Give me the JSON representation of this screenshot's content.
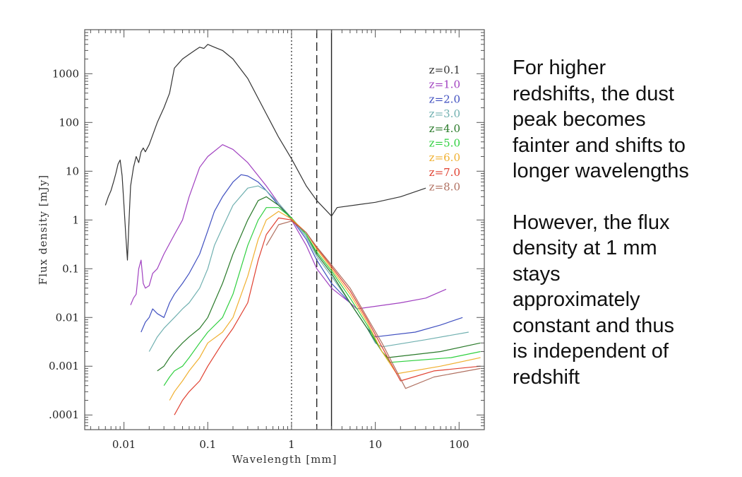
{
  "chart_data": {
    "type": "line",
    "xlabel": "Wavelength [mm]",
    "ylabel": "Flux density [mJy]",
    "xscale": "log",
    "yscale": "log",
    "xlim": [
      0.0034,
      200
    ],
    "ylim": [
      5e-05,
      8000
    ],
    "grid": false,
    "legend_position": "top-right",
    "x_tick_labels": [
      "0.01",
      "0.1",
      "1",
      "10",
      "100"
    ],
    "y_tick_labels": [
      ".0001",
      "0.001",
      "0.01",
      "0.1",
      "1",
      "10",
      "100",
      "1000"
    ],
    "x_tick_values": [
      0.01,
      0.1,
      1,
      10,
      100
    ],
    "y_tick_values": [
      0.0001,
      0.001,
      0.01,
      0.1,
      1,
      10,
      100,
      1000
    ],
    "vertical_lines": [
      {
        "x": 1,
        "style": "dotted"
      },
      {
        "x": 2,
        "style": "dashed"
      },
      {
        "x": 3,
        "style": "solid"
      }
    ],
    "series": [
      {
        "name": "z=0.1",
        "color": "#333333",
        "points": [
          [
            0.006,
            2
          ],
          [
            0.0065,
            3
          ],
          [
            0.007,
            4
          ],
          [
            0.0075,
            6
          ],
          [
            0.008,
            9
          ],
          [
            0.0085,
            14
          ],
          [
            0.009,
            17
          ],
          [
            0.0095,
            8
          ],
          [
            0.01,
            2
          ],
          [
            0.0105,
            0.5
          ],
          [
            0.011,
            0.15
          ],
          [
            0.0115,
            1
          ],
          [
            0.012,
            5
          ],
          [
            0.013,
            12
          ],
          [
            0.014,
            20
          ],
          [
            0.015,
            15
          ],
          [
            0.016,
            25
          ],
          [
            0.017,
            30
          ],
          [
            0.018,
            25
          ],
          [
            0.02,
            35
          ],
          [
            0.025,
            100
          ],
          [
            0.03,
            200
          ],
          [
            0.035,
            400
          ],
          [
            0.04,
            1300
          ],
          [
            0.05,
            2000
          ],
          [
            0.06,
            2500
          ],
          [
            0.07,
            3000
          ],
          [
            0.08,
            3500
          ],
          [
            0.09,
            3300
          ],
          [
            0.1,
            4000
          ],
          [
            0.12,
            3500
          ],
          [
            0.15,
            3000
          ],
          [
            0.2,
            2000
          ],
          [
            0.3,
            800
          ],
          [
            0.5,
            150
          ],
          [
            0.7,
            50
          ],
          [
            1,
            18
          ],
          [
            1.5,
            5
          ],
          [
            2,
            2.5
          ],
          [
            3,
            1.2
          ],
          [
            3.5,
            1.8
          ],
          [
            10,
            2.3
          ],
          [
            20,
            3
          ],
          [
            40,
            4.5
          ]
        ]
      },
      {
        "name": "z=1.0",
        "color": "#a040c0",
        "points": [
          [
            0.012,
            0.018
          ],
          [
            0.013,
            0.025
          ],
          [
            0.014,
            0.03
          ],
          [
            0.015,
            0.1
          ],
          [
            0.016,
            0.15
          ],
          [
            0.017,
            0.05
          ],
          [
            0.018,
            0.04
          ],
          [
            0.02,
            0.045
          ],
          [
            0.022,
            0.08
          ],
          [
            0.025,
            0.1
          ],
          [
            0.03,
            0.2
          ],
          [
            0.04,
            0.5
          ],
          [
            0.05,
            1
          ],
          [
            0.06,
            3
          ],
          [
            0.08,
            12
          ],
          [
            0.1,
            20
          ],
          [
            0.15,
            35
          ],
          [
            0.2,
            28
          ],
          [
            0.3,
            15
          ],
          [
            0.5,
            5
          ],
          [
            0.7,
            2.2
          ],
          [
            1,
            1
          ],
          [
            1.5,
            0.3
          ],
          [
            2,
            0.1
          ],
          [
            3,
            0.04
          ],
          [
            5,
            0.02
          ],
          [
            6,
            0.015
          ],
          [
            20,
            0.02
          ],
          [
            40,
            0.025
          ],
          [
            70,
            0.038
          ]
        ]
      },
      {
        "name": "z=2.0",
        "color": "#4050c0",
        "points": [
          [
            0.016,
            0.005
          ],
          [
            0.018,
            0.008
          ],
          [
            0.02,
            0.01
          ],
          [
            0.022,
            0.015
          ],
          [
            0.025,
            0.012
          ],
          [
            0.03,
            0.01
          ],
          [
            0.035,
            0.02
          ],
          [
            0.04,
            0.03
          ],
          [
            0.05,
            0.05
          ],
          [
            0.06,
            0.08
          ],
          [
            0.08,
            0.2
          ],
          [
            0.1,
            0.6
          ],
          [
            0.12,
            1.5
          ],
          [
            0.15,
            3
          ],
          [
            0.2,
            6
          ],
          [
            0.25,
            8.5
          ],
          [
            0.3,
            8
          ],
          [
            0.4,
            6
          ],
          [
            0.5,
            4
          ],
          [
            0.7,
            2
          ],
          [
            1,
            1.05
          ],
          [
            1.5,
            0.4
          ],
          [
            2,
            0.15
          ],
          [
            3,
            0.05
          ],
          [
            5,
            0.02
          ],
          [
            8,
            0.006
          ],
          [
            10,
            0.004
          ],
          [
            30,
            0.005
          ],
          [
            60,
            0.007
          ],
          [
            110,
            0.01
          ]
        ]
      },
      {
        "name": "z=3.0",
        "color": "#70b0b0",
        "points": [
          [
            0.02,
            0.002
          ],
          [
            0.025,
            0.004
          ],
          [
            0.03,
            0.006
          ],
          [
            0.04,
            0.01
          ],
          [
            0.05,
            0.015
          ],
          [
            0.06,
            0.02
          ],
          [
            0.08,
            0.04
          ],
          [
            0.1,
            0.1
          ],
          [
            0.12,
            0.3
          ],
          [
            0.15,
            0.7
          ],
          [
            0.2,
            2
          ],
          [
            0.3,
            4.5
          ],
          [
            0.4,
            5
          ],
          [
            0.5,
            4
          ],
          [
            0.7,
            2.2
          ],
          [
            1,
            1.1
          ],
          [
            1.5,
            0.45
          ],
          [
            2,
            0.18
          ],
          [
            3,
            0.07
          ],
          [
            5,
            0.02
          ],
          [
            8,
            0.006
          ],
          [
            10,
            0.003
          ],
          [
            12,
            0.0025
          ],
          [
            40,
            0.0035
          ],
          [
            130,
            0.005
          ]
        ]
      },
      {
        "name": "z=4.0",
        "color": "#2a7a2a",
        "points": [
          [
            0.025,
            0.0008
          ],
          [
            0.03,
            0.001
          ],
          [
            0.035,
            0.0015
          ],
          [
            0.04,
            0.002
          ],
          [
            0.05,
            0.003
          ],
          [
            0.06,
            0.004
          ],
          [
            0.08,
            0.006
          ],
          [
            0.1,
            0.01
          ],
          [
            0.15,
            0.05
          ],
          [
            0.2,
            0.2
          ],
          [
            0.3,
            1
          ],
          [
            0.4,
            2.5
          ],
          [
            0.5,
            3
          ],
          [
            0.7,
            2
          ],
          [
            1,
            1.1
          ],
          [
            1.5,
            0.5
          ],
          [
            2,
            0.2
          ],
          [
            3,
            0.08
          ],
          [
            5,
            0.02
          ],
          [
            8,
            0.006
          ],
          [
            12,
            0.002
          ],
          [
            14,
            0.0015
          ],
          [
            60,
            0.002
          ],
          [
            180,
            0.003
          ]
        ]
      },
      {
        "name": "z=5.0",
        "color": "#30d040",
        "points": [
          [
            0.03,
            0.0004
          ],
          [
            0.035,
            0.0006
          ],
          [
            0.04,
            0.0008
          ],
          [
            0.05,
            0.001
          ],
          [
            0.06,
            0.0015
          ],
          [
            0.08,
            0.003
          ],
          [
            0.1,
            0.005
          ],
          [
            0.15,
            0.01
          ],
          [
            0.2,
            0.03
          ],
          [
            0.3,
            0.3
          ],
          [
            0.4,
            1
          ],
          [
            0.5,
            1.8
          ],
          [
            0.7,
            1.8
          ],
          [
            1,
            1.1
          ],
          [
            1.5,
            0.5
          ],
          [
            2,
            0.22
          ],
          [
            3,
            0.09
          ],
          [
            5,
            0.025
          ],
          [
            8,
            0.007
          ],
          [
            12,
            0.002
          ],
          [
            15,
            0.0012
          ],
          [
            80,
            0.0015
          ],
          [
            180,
            0.002
          ]
        ]
      },
      {
        "name": "z=6.0",
        "color": "#f0b030",
        "points": [
          [
            0.035,
            0.0002
          ],
          [
            0.04,
            0.0003
          ],
          [
            0.05,
            0.0005
          ],
          [
            0.06,
            0.0008
          ],
          [
            0.08,
            0.0015
          ],
          [
            0.1,
            0.003
          ],
          [
            0.15,
            0.005
          ],
          [
            0.2,
            0.01
          ],
          [
            0.3,
            0.07
          ],
          [
            0.4,
            0.4
          ],
          [
            0.5,
            1
          ],
          [
            0.7,
            1.5
          ],
          [
            1,
            1.05
          ],
          [
            1.5,
            0.55
          ],
          [
            2,
            0.25
          ],
          [
            3,
            0.1
          ],
          [
            5,
            0.03
          ],
          [
            8,
            0.008
          ],
          [
            12,
            0.002
          ],
          [
            18,
            0.0007
          ],
          [
            60,
            0.001
          ],
          [
            180,
            0.0015
          ]
        ]
      },
      {
        "name": "z=7.0",
        "color": "#e04030",
        "points": [
          [
            0.04,
            0.0001
          ],
          [
            0.05,
            0.0002
          ],
          [
            0.06,
            0.0003
          ],
          [
            0.08,
            0.0005
          ],
          [
            0.1,
            0.001
          ],
          [
            0.15,
            0.003
          ],
          [
            0.2,
            0.006
          ],
          [
            0.3,
            0.02
          ],
          [
            0.4,
            0.15
          ],
          [
            0.5,
            0.5
          ],
          [
            0.7,
            1.1
          ],
          [
            1,
            1
          ],
          [
            1.5,
            0.55
          ],
          [
            2,
            0.27
          ],
          [
            3,
            0.11
          ],
          [
            5,
            0.035
          ],
          [
            8,
            0.009
          ],
          [
            12,
            0.0025
          ],
          [
            20,
            0.0005
          ],
          [
            50,
            0.0008
          ],
          [
            180,
            0.001
          ]
        ]
      },
      {
        "name": "z=8.0",
        "color": "#b07060",
        "points": [
          [
            0.5,
            0.3
          ],
          [
            0.7,
            0.8
          ],
          [
            1,
            0.95
          ],
          [
            1.5,
            0.55
          ],
          [
            2,
            0.28
          ],
          [
            3,
            0.12
          ],
          [
            5,
            0.04
          ],
          [
            8,
            0.01
          ],
          [
            12,
            0.003
          ],
          [
            23,
            0.00035
          ],
          [
            50,
            0.0006
          ],
          [
            180,
            0.0009
          ]
        ]
      }
    ]
  },
  "notes": {
    "paragraph1": "For higher\nredshifts, the dust\npeak becomes\nfainter and shifts to\nlonger wavelengths",
    "paragraph2": "However, the flux\ndensity at 1 mm\nstays\napproximately\nconstant and thus\nis independent of\nredshift"
  }
}
